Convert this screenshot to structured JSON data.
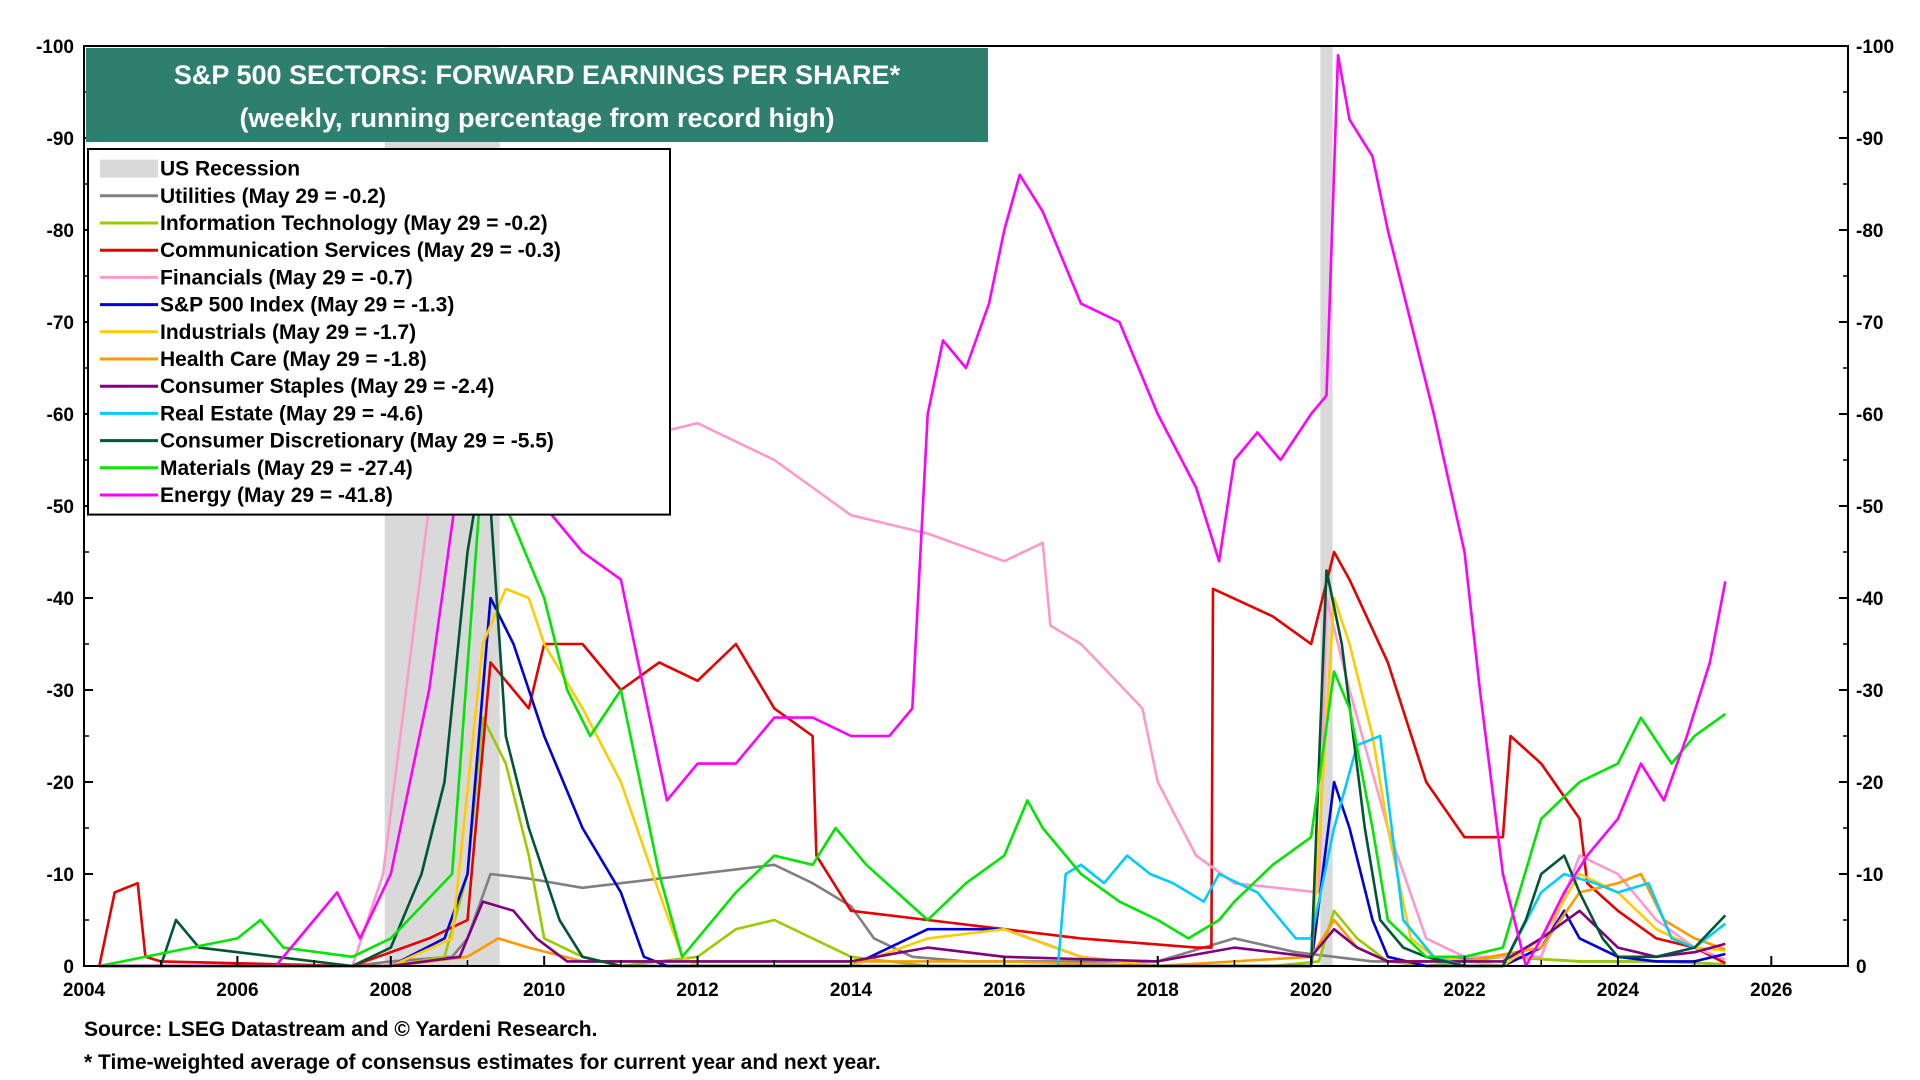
{
  "chart_data": {
    "type": "line",
    "title": "S&P 500 SECTORS: FORWARD EARNINGS PER SHARE*",
    "subtitle": "(weekly, running percentage from record high)",
    "xlim": [
      2004,
      2027
    ],
    "ylim": [
      0,
      -100
    ],
    "x_ticks": [
      "2004",
      "2006",
      "2008",
      "2010",
      "2012",
      "2014",
      "2016",
      "2018",
      "2020",
      "2022",
      "2024",
      "2026"
    ],
    "y_ticks": [
      "-100",
      "-90",
      "-80",
      "-70",
      "-60",
      "-50",
      "-40",
      "-30",
      "-20",
      "-10",
      "0"
    ],
    "grid": false,
    "legend_position": "top-left",
    "recessions": [
      {
        "label": "US Recession",
        "start": 2007.92,
        "end": 2009.42,
        "color": "#d9d9d9"
      },
      {
        "start": 2020.12,
        "end": 2020.28,
        "color": "#d9d9d9"
      }
    ],
    "series": [
      {
        "name": "Utilities (May 29 = -0.2)",
        "color": "#808080",
        "x": [
          2004.2,
          2007.5,
          2008.0,
          2008.8,
          2009.0,
          2009.3,
          2009.8,
          2010.5,
          2011.0,
          2011.5,
          2012.0,
          2012.5,
          2013.0,
          2013.5,
          2014.0,
          2014.3,
          2014.8,
          2015.5,
          2017.0,
          2018.0,
          2019.0,
          2019.8,
          2020.3,
          2020.8,
          2021.5,
          2022.5,
          2023.5,
          2024.5,
          2025.4
        ],
        "y": [
          0,
          0,
          -0.5,
          -1,
          -3,
          -10,
          -9.5,
          -8.5,
          -9,
          -9.5,
          -10,
          -10.5,
          -11,
          -9,
          -6.5,
          -3,
          -1,
          -0.5,
          -0.5,
          -0.5,
          -3,
          -1.5,
          -1,
          -0.5,
          -0.5,
          -1,
          -0.5,
          -0.5,
          -0.2
        ]
      },
      {
        "name": "Information Technology (May 29 = -0.2)",
        "color": "#99cc00",
        "x": [
          2004.2,
          2008.0,
          2008.7,
          2009.0,
          2009.2,
          2009.5,
          2009.8,
          2010.0,
          2010.5,
          2011.0,
          2012.0,
          2012.5,
          2013.0,
          2013.5,
          2014.0,
          2015.0,
          2018.0,
          2019.5,
          2020.1,
          2020.3,
          2020.6,
          2021.0,
          2021.5,
          2022.5,
          2023.5,
          2024.5,
          2025.4
        ],
        "y": [
          0,
          0,
          -1,
          -10,
          -27,
          -22,
          -12,
          -3,
          -1,
          0,
          -1,
          -4,
          -5,
          -3,
          -1,
          0,
          0,
          0,
          -0.5,
          -6,
          -3,
          -0.5,
          0,
          -1,
          -0.5,
          -0.5,
          -0.2
        ]
      },
      {
        "name": "Communication Services (May 29 = -0.3)",
        "color": "#e60000",
        "x": [
          2004.2,
          2004.4,
          2004.7,
          2004.8,
          2005.0,
          2007.5,
          2008.5,
          2009.0,
          2009.3,
          2009.8,
          2010.0,
          2010.5,
          2011.0,
          2011.5,
          2012.0,
          2012.5,
          2013.0,
          2013.5,
          2013.55,
          2014.0,
          2015.0,
          2016.0,
          2017.0,
          2018.5,
          2018.7,
          2018.72,
          2019.5,
          2020.0,
          2020.3,
          2020.5,
          2021.0,
          2021.5,
          2022.0,
          2022.5,
          2022.6,
          2023.0,
          2023.5,
          2023.6,
          2024.0,
          2024.5,
          2025.0,
          2025.4
        ],
        "y": [
          0,
          -8,
          -9,
          -1,
          -0.5,
          0,
          -3,
          -5,
          -33,
          -28,
          -35,
          -35,
          -30,
          -33,
          -31,
          -35,
          -28,
          -25,
          -12,
          -6,
          -5,
          -4,
          -3,
          -2,
          -2,
          -41,
          -38,
          -35,
          -45,
          -42,
          -33,
          -20,
          -14,
          -14,
          -25,
          -22,
          -16,
          -9,
          -6,
          -3,
          -2,
          -0.3
        ]
      },
      {
        "name": "Financials (May 29 = -0.7)",
        "color": "#ff99cc",
        "x": [
          2004.2,
          2007.5,
          2007.9,
          2008.2,
          2008.5,
          2009.0,
          2009.5,
          2010.0,
          2011.0,
          2012.0,
          2013.0,
          2014.0,
          2015.0,
          2016.0,
          2016.5,
          2016.6,
          2017.0,
          2017.8,
          2018.0,
          2018.5,
          2019.0,
          2020.1,
          2020.2,
          2020.5,
          2021.0,
          2021.5,
          2022.0,
          2023.0,
          2023.5,
          2024.0,
          2024.5,
          2025.0,
          2025.4
        ],
        "y": [
          0,
          0,
          -10,
          -30,
          -50,
          -55,
          -57,
          -58,
          -57,
          -59,
          -55,
          -49,
          -47,
          -44,
          -46,
          -37,
          -35,
          -28,
          -20,
          -12,
          -9,
          -8,
          -40,
          -30,
          -15,
          -3,
          -1,
          -1,
          -12,
          -10,
          -5,
          -2,
          -0.7
        ]
      },
      {
        "name": "S&P 500 Index (May 29 = -1.3)",
        "color": "#0000dd",
        "x": [
          2004.2,
          2008.0,
          2008.7,
          2009.0,
          2009.3,
          2009.6,
          2010.0,
          2010.5,
          2011.0,
          2011.3,
          2011.6,
          2012.0,
          2013.0,
          2014.0,
          2015.0,
          2016.0,
          2017.0,
          2018.0,
          2020.0,
          2020.3,
          2020.5,
          2020.8,
          2021.0,
          2021.5,
          2022.5,
          2023.0,
          2023.3,
          2023.5,
          2024.0,
          2024.5,
          2025.0,
          2025.4
        ],
        "y": [
          0,
          0,
          -3,
          -10,
          -40,
          -35,
          -25,
          -15,
          -8,
          -1,
          0,
          0,
          0,
          0,
          -4,
          -4,
          -1,
          0,
          0,
          -20,
          -15,
          -5,
          -1,
          0,
          0,
          -2,
          -6,
          -3,
          -1,
          -0.5,
          -0.5,
          -1.3
        ]
      },
      {
        "name": "Industrials (May 29 = -1.7)",
        "color": "#ffcc00",
        "x": [
          2004.2,
          2008.0,
          2008.8,
          2009.2,
          2009.5,
          2009.8,
          2010.0,
          2010.5,
          2011.0,
          2011.5,
          2011.8,
          2012.0,
          2013.0,
          2014.0,
          2015.0,
          2016.0,
          2017.0,
          2018.0,
          2020.0,
          2020.3,
          2020.5,
          2020.8,
          2021.0,
          2021.3,
          2021.6,
          2022.5,
          2023.0,
          2023.5,
          2024.0,
          2024.5,
          2025.0,
          2025.4
        ],
        "y": [
          0,
          0,
          -3,
          -35,
          -41,
          -40,
          -35,
          -28,
          -20,
          -8,
          -1,
          0,
          0,
          0,
          -3,
          -4,
          -1,
          0,
          0,
          -40,
          -35,
          -25,
          -15,
          -3,
          -1,
          0,
          -3,
          -10,
          -8,
          -4,
          -2,
          -1.7
        ]
      },
      {
        "name": "Health Care (May 29 = -1.8)",
        "color": "#ff9900",
        "x": [
          2004.2,
          2008.0,
          2009.0,
          2009.4,
          2009.8,
          2010.5,
          2012.0,
          2014.0,
          2016.0,
          2018.0,
          2020.0,
          2020.3,
          2020.6,
          2021.0,
          2022.0,
          2023.0,
          2023.5,
          2024.0,
          2024.3,
          2024.6,
          2025.0,
          2025.4
        ],
        "y": [
          0,
          0,
          -1,
          -3,
          -2,
          -0.5,
          -0.5,
          -0.5,
          -0.5,
          0,
          -1,
          -5,
          -2,
          -0.5,
          -0.5,
          -2,
          -8,
          -9,
          -10,
          -5,
          -3,
          -1.8
        ]
      },
      {
        "name": "Consumer Staples (May 29 = -2.4)",
        "color": "#800080",
        "x": [
          2004.2,
          2008.0,
          2008.9,
          2009.2,
          2009.6,
          2009.9,
          2010.3,
          2012.0,
          2014.0,
          2015.0,
          2016.0,
          2018.0,
          2019.0,
          2020.0,
          2020.3,
          2020.6,
          2021.0,
          2022.5,
          2023.0,
          2023.5,
          2024.0,
          2024.5,
          2025.0,
          2025.4
        ],
        "y": [
          0,
          0,
          -1,
          -7,
          -6,
          -3,
          -0.5,
          -0.5,
          -0.5,
          -2,
          -1,
          -0.5,
          -2,
          -1,
          -4,
          -2,
          -0.5,
          -0.5,
          -3,
          -6,
          -2,
          -1,
          -1.5,
          -2.4
        ]
      },
      {
        "name": "Real Estate (May 29 = -4.6)",
        "color": "#00ccff",
        "x": [
          2016.7,
          2016.8,
          2017.0,
          2017.3,
          2017.6,
          2017.9,
          2018.2,
          2018.6,
          2018.8,
          2019.3,
          2019.8,
          2020.0,
          2020.3,
          2020.6,
          2020.9,
          2021.2,
          2021.6,
          2022.0,
          2022.5,
          2023.0,
          2023.3,
          2023.7,
          2024.0,
          2024.4,
          2024.7,
          2025.0,
          2025.4
        ],
        "y": [
          0,
          -10,
          -11,
          -9,
          -12,
          -10,
          -9,
          -7,
          -10,
          -8,
          -3,
          -3,
          -15,
          -24,
          -25,
          -5,
          -1,
          0,
          0,
          -8,
          -10,
          -9,
          -8,
          -9,
          -3,
          -2,
          -4.6
        ]
      },
      {
        "name": "Consumer Discretionary (May 29 = -5.5)",
        "color": "#005533",
        "x": [
          2004.2,
          2005.0,
          2005.2,
          2005.5,
          2007.5,
          2008.0,
          2008.4,
          2008.7,
          2009.0,
          2009.1,
          2009.3,
          2009.5,
          2009.8,
          2010.2,
          2010.5,
          2011.0,
          2014.0,
          2018.0,
          2020.0,
          2020.2,
          2020.4,
          2020.7,
          2020.9,
          2021.2,
          2021.5,
          2022.0,
          2022.5,
          2022.8,
          2023.0,
          2023.3,
          2023.5,
          2023.8,
          2024.0,
          2024.5,
          2025.0,
          2025.4
        ],
        "y": [
          0,
          0,
          -5,
          -2,
          0,
          -2,
          -10,
          -20,
          -45,
          -50,
          -50,
          -25,
          -15,
          -5,
          -1,
          0,
          0,
          0,
          0,
          -43,
          -35,
          -15,
          -5,
          -2,
          -1,
          0,
          0,
          -5,
          -10,
          -12,
          -8,
          -3,
          -1,
          -1,
          -2,
          -5.5
        ]
      },
      {
        "name": "Materials (May 29 = -27.4)",
        "color": "#00e600",
        "x": [
          2004.2,
          2006.0,
          2006.3,
          2006.6,
          2007.5,
          2008.0,
          2008.8,
          2009.2,
          2009.5,
          2010.0,
          2010.3,
          2010.6,
          2011.0,
          2011.2,
          2011.5,
          2011.8,
          2012.0,
          2012.5,
          2013.0,
          2013.5,
          2013.8,
          2014.2,
          2014.6,
          2015.0,
          2015.5,
          2016.0,
          2016.3,
          2016.5,
          2017.0,
          2017.5,
          2018.0,
          2018.4,
          2018.8,
          2019.0,
          2019.5,
          2020.0,
          2020.3,
          2020.5,
          2020.8,
          2021.0,
          2021.5,
          2022.0,
          2022.5,
          2023.0,
          2023.5,
          2024.0,
          2024.3,
          2024.7,
          2025.0,
          2025.4
        ],
        "y": [
          0,
          -3,
          -5,
          -2,
          -1,
          -3,
          -10,
          -55,
          -50,
          -40,
          -30,
          -25,
          -30,
          -22,
          -10,
          -1,
          -3,
          -8,
          -12,
          -11,
          -15,
          -11,
          -8,
          -5,
          -9,
          -12,
          -18,
          -15,
          -10,
          -7,
          -5,
          -3,
          -5,
          -7,
          -11,
          -14,
          -32,
          -28,
          -15,
          -5,
          -1,
          -1,
          -2,
          -16,
          -20,
          -22,
          -27,
          -22,
          -25,
          -27.4
        ]
      },
      {
        "name": "Energy (May 29 = -41.8)",
        "color": "#ff00ff",
        "x": [
          2004.2,
          2006.5,
          2007.0,
          2007.3,
          2007.6,
          2008.0,
          2008.5,
          2009.0,
          2009.5,
          2010.0,
          2010.5,
          2011.0,
          2011.3,
          2011.6,
          2012.0,
          2012.5,
          2013.0,
          2013.5,
          2014.0,
          2014.5,
          2014.8,
          2015.0,
          2015.2,
          2015.5,
          2015.8,
          2016.0,
          2016.2,
          2016.5,
          2017.0,
          2017.5,
          2018.0,
          2018.5,
          2018.8,
          2019.0,
          2019.3,
          2019.6,
          2020.0,
          2020.2,
          2020.35,
          2020.5,
          2020.8,
          2021.0,
          2021.3,
          2021.6,
          2022.0,
          2022.2,
          2022.5,
          2022.8,
          2023.0,
          2023.3,
          2023.6,
          2024.0,
          2024.3,
          2024.6,
          2024.9,
          2025.2,
          2025.4
        ],
        "y": [
          0,
          0,
          -5,
          -8,
          -3,
          -10,
          -30,
          -60,
          -55,
          -50,
          -45,
          -42,
          -30,
          -18,
          -22,
          -22,
          -27,
          -27,
          -25,
          -25,
          -28,
          -60,
          -68,
          -65,
          -72,
          -80,
          -86,
          -82,
          -72,
          -70,
          -60,
          -52,
          -44,
          -55,
          -58,
          -55,
          -60,
          -62,
          -99,
          -92,
          -88,
          -80,
          -70,
          -60,
          -45,
          -30,
          -10,
          0,
          -3,
          -8,
          -12,
          -16,
          -22,
          -18,
          -25,
          -33,
          -41.8
        ]
      }
    ],
    "notes": [
      "Source: LSEG Datastream and © Yardeni Research.",
      "* Time-weighted average of consensus estimates for current year and next year."
    ]
  }
}
